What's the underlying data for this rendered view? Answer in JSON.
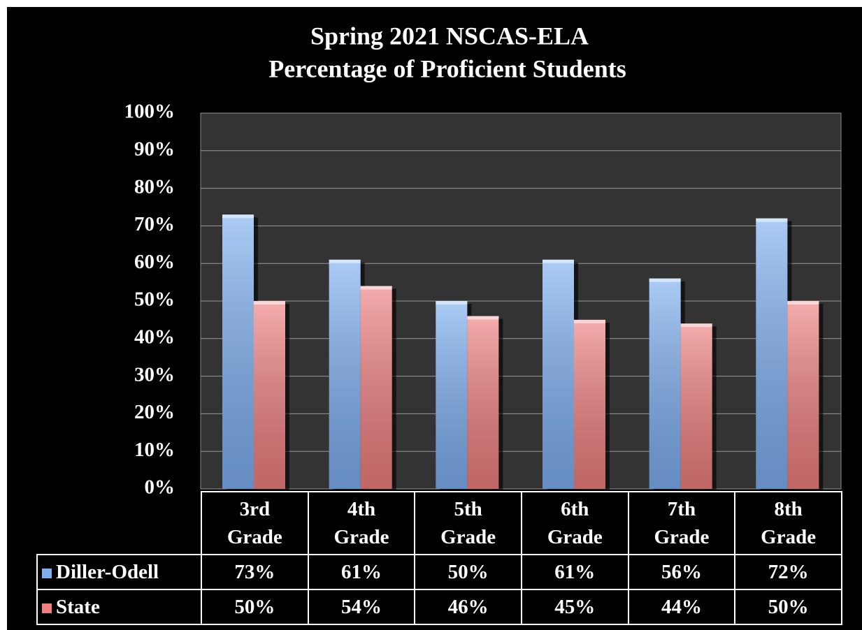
{
  "chart_data": {
    "type": "bar",
    "title": "Spring 2021 NSCAS-ELA",
    "subtitle": "Percentage of Proficient Students",
    "categories": [
      "3rd Grade",
      "4th Grade",
      "5th Grade",
      "6th Grade",
      "7th Grade",
      "8th Grade"
    ],
    "series": [
      {
        "name": "Diller-Odell",
        "color": "#7fb0f2",
        "values": [
          73,
          61,
          50,
          61,
          56,
          72
        ],
        "value_labels": [
          "73%",
          "61%",
          "50%",
          "61%",
          "56%",
          "72%"
        ]
      },
      {
        "name": "State",
        "color": "#f08080",
        "values": [
          50,
          54,
          46,
          45,
          44,
          50
        ],
        "value_labels": [
          "50%",
          "54%",
          "46%",
          "45%",
          "44%",
          "50%"
        ]
      }
    ],
    "ylim": [
      0,
      100
    ],
    "yticks": [
      {
        "value": 0,
        "label": "0%"
      },
      {
        "value": 10,
        "label": "10%"
      },
      {
        "value": 20,
        "label": "20%"
      },
      {
        "value": 30,
        "label": "30%"
      },
      {
        "value": 40,
        "label": "40%"
      },
      {
        "value": 50,
        "label": "50%"
      },
      {
        "value": 60,
        "label": "60%"
      },
      {
        "value": 70,
        "label": "70%"
      },
      {
        "value": 80,
        "label": "80%"
      },
      {
        "value": 90,
        "label": "90%"
      },
      {
        "value": 100,
        "label": "100%"
      }
    ],
    "grid": true
  }
}
